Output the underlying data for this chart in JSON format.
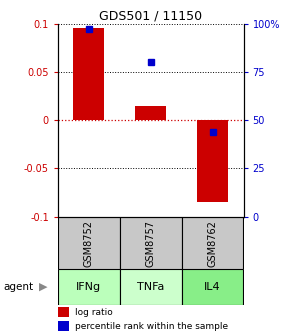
{
  "title": "GDS501 / 11150",
  "samples": [
    "GSM8752",
    "GSM8757",
    "GSM8762"
  ],
  "agents": [
    "IFNg",
    "TNFa",
    "IL4"
  ],
  "log_ratios": [
    0.095,
    0.015,
    -0.085
  ],
  "percentile_ranks": [
    0.97,
    0.8,
    0.44
  ],
  "ylim_left": [
    -0.1,
    0.1
  ],
  "ylim_right": [
    0,
    100
  ],
  "bar_color": "#cc0000",
  "percentile_color": "#0000cc",
  "zero_line_color": "#cc0000",
  "sample_bg": "#c8c8c8",
  "agent_bg_color": "#99ee99",
  "agent_bg_color2": "#bbffbb",
  "left_tick_color": "#cc0000",
  "right_tick_color": "#0000cc",
  "bar_width": 0.5
}
